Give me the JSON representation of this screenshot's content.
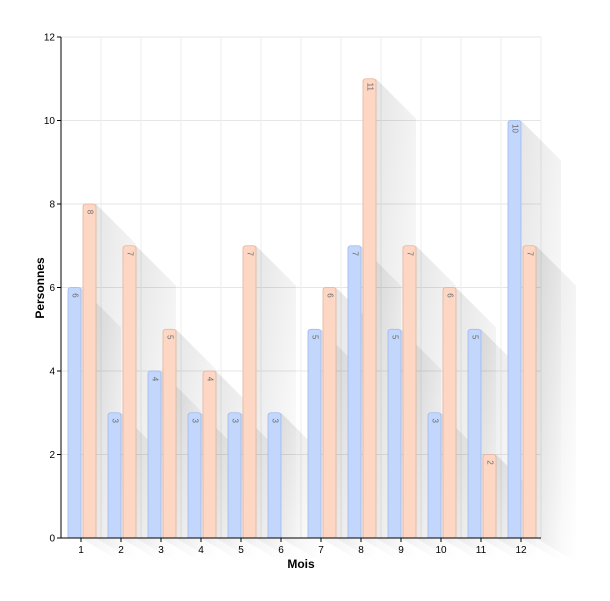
{
  "chart_data": {
    "type": "bar",
    "xlabel": "Mois",
    "ylabel": "Personnes",
    "ylim": [
      0,
      12
    ],
    "yticks": [
      0,
      2,
      4,
      6,
      8,
      10,
      12
    ],
    "categories": [
      "1",
      "2",
      "3",
      "4",
      "5",
      "6",
      "7",
      "8",
      "9",
      "10",
      "11",
      "12"
    ],
    "series": [
      {
        "values": [
          6,
          3,
          4,
          3,
          3,
          3,
          5,
          7,
          5,
          3,
          5,
          10
        ],
        "color": "#c3d6fb",
        "stroke": "#9fb9ee"
      },
      {
        "values": [
          8,
          7,
          5,
          4,
          7,
          null,
          6,
          11,
          7,
          6,
          2,
          7
        ],
        "color": "#fdd7c3",
        "stroke": "#e6b198"
      }
    ],
    "grid": true,
    "data_labels": true
  }
}
